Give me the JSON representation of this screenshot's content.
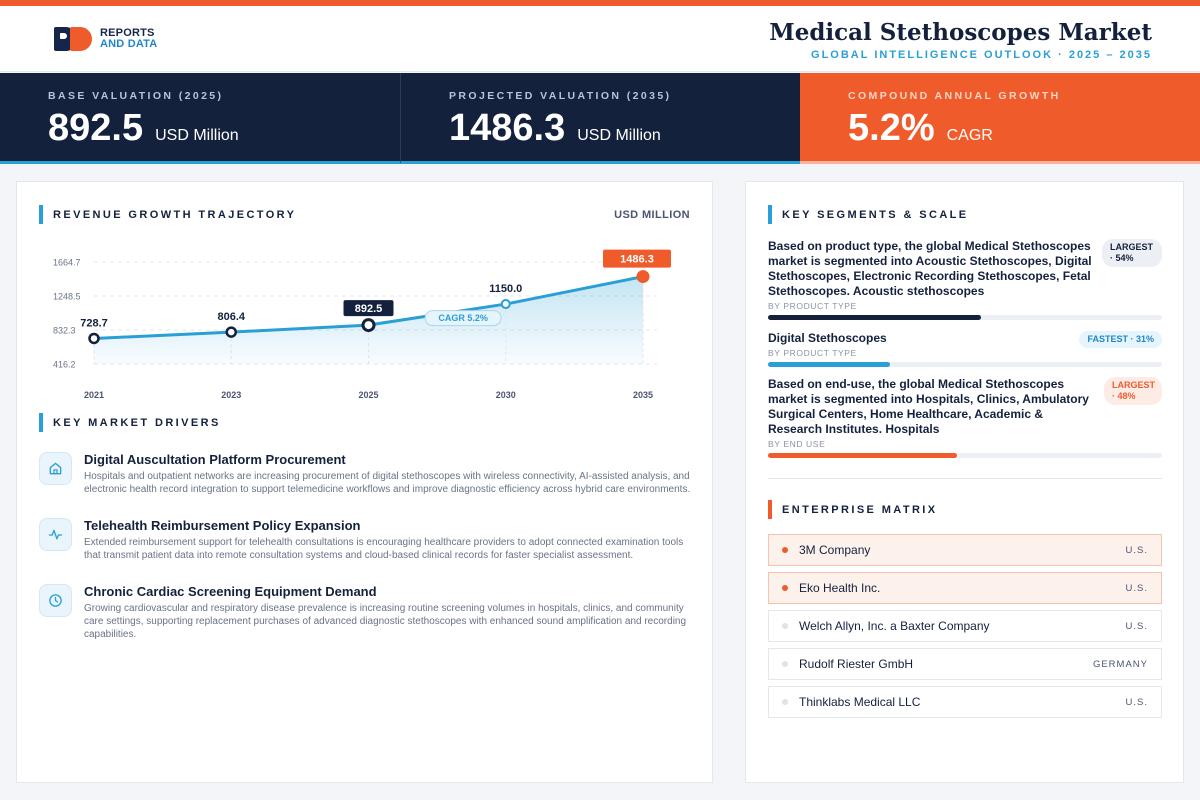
{
  "brand": {
    "line1": "REPORTS",
    "line2": "AND DATA"
  },
  "header": {
    "title": "Medical Stethoscopes Market",
    "subtitle": "GLOBAL INTELLIGENCE OUTLOOK · 2025 – 2035"
  },
  "kpis": [
    {
      "label": "BASE VALUATION (2025)",
      "value": "892.5",
      "unit": "USD Million"
    },
    {
      "label": "PROJECTED VALUATION (2035)",
      "value": "1486.3",
      "unit": "USD Million"
    },
    {
      "label": "COMPOUND ANNUAL GROWTH",
      "value": "5.2%",
      "unit": "CAGR"
    }
  ],
  "chart_section": {
    "title": "REVENUE GROWTH TRAJECTORY",
    "unit": "USD MILLION"
  },
  "chart_data": {
    "type": "area",
    "x": [
      "2021",
      "2023",
      "2025",
      "2030",
      "2035"
    ],
    "values": [
      728.7,
      806.4,
      892.5,
      1150.0,
      1486.3
    ],
    "value_labels": [
      "728.7",
      "806.4",
      "892.5",
      "1150.0",
      "1486.3"
    ],
    "y_ticks": [
      416.2,
      832.3,
      1248.5,
      1664.7
    ],
    "y_tick_labels": [
      "416.2",
      "832.3",
      "1248.5",
      "1664.7"
    ],
    "ylim": [
      416.2,
      1664.7
    ],
    "annotation": "CAGR 5.2%",
    "grid": true,
    "colors": {
      "line": "#2a9fd6",
      "highlight": "#14213d",
      "projection": "#ef5b2b"
    }
  },
  "drivers_section": {
    "title": "KEY MARKET DRIVERS"
  },
  "drivers": [
    {
      "icon": "building-icon",
      "title": "Digital Auscultation Platform Procurement",
      "desc": "Hospitals and outpatient networks are increasing procurement of digital stethoscopes with wireless connectivity, AI-assisted analysis, and electronic health record integration to support telemedicine workflows and improve diagnostic efficiency across hybrid care environments."
    },
    {
      "icon": "pulse-icon",
      "title": "Telehealth Reimbursement Policy Expansion",
      "desc": "Extended reimbursement support for telehealth consultations is encouraging healthcare providers to adopt connected examination tools that transmit patient data into remote consultation systems and cloud-based clinical records for faster specialist assessment."
    },
    {
      "icon": "clock-icon",
      "title": "Chronic Cardiac Screening Equipment Demand",
      "desc": "Growing cardiovascular and respiratory disease prevalence is increasing routine screening volumes in hospitals, clinics, and community care settings, supporting replacement purchases of advanced diagnostic stethoscopes with enhanced sound amplification and recording capabilities."
    }
  ],
  "segments_section": {
    "title": "KEY SEGMENTS & SCALE"
  },
  "segments": [
    {
      "text": "Based on product type, the global Medical Stethoscopes market is segmented into Acoustic Stethoscopes, Digital Stethoscopes, Electronic Recording Stethoscopes, Fetal Stethoscopes. Acoustic stethoscopes",
      "sub": "BY PRODUCT TYPE",
      "badge": "LARGEST · 54%",
      "share": 0.54,
      "color": "#14213d"
    },
    {
      "text": "Digital Stethoscopes",
      "sub": "BY PRODUCT TYPE",
      "badge": "FASTEST · 31%",
      "share": 0.31,
      "color": "#2a9fd6"
    },
    {
      "text": "Based on end-use, the global Medical Stethoscopes market is segmented into Hospitals, Clinics, Ambulatory Surgical Centers, Home Healthcare, Academic & Research Institutes. Hospitals",
      "sub": "BY END USE",
      "badge": "LARGEST · 48%",
      "share": 0.48,
      "color": "#ef5b2b"
    }
  ],
  "enterprise_section": {
    "title": "ENTERPRISE MATRIX"
  },
  "enterprises": [
    {
      "name": "3M Company",
      "country": "U.S."
    },
    {
      "name": "Eko Health Inc.",
      "country": "U.S."
    },
    {
      "name": "Welch Allyn, Inc. a Baxter Company",
      "country": "U.S."
    },
    {
      "name": "Rudolf Riester GmbH",
      "country": "GERMANY"
    },
    {
      "name": "Thinklabs Medical LLC",
      "country": "U.S."
    }
  ]
}
